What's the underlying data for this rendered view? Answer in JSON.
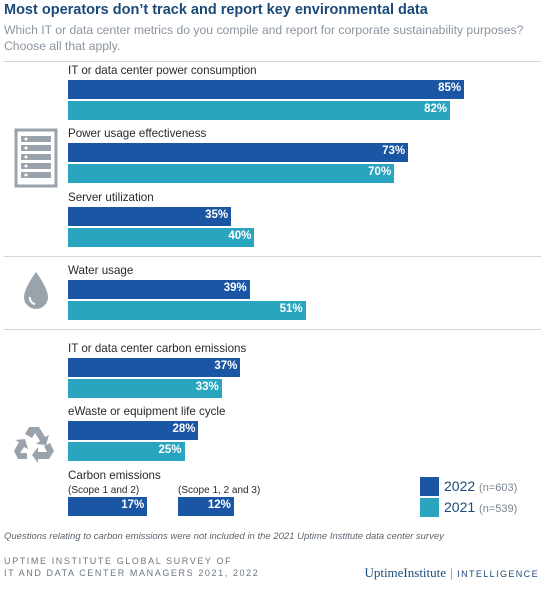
{
  "title": "Most operators don’t track and report key environmental data",
  "subtitle": "Which IT or data center metrics do you compile and report for corporate sustainability purposes? Choose all that apply.",
  "colors": {
    "2022": "#1a56a3",
    "2021": "#2aa5bf"
  },
  "chart_data": {
    "type": "bar",
    "orientation": "horizontal",
    "unit": "%",
    "xlim": [
      0,
      100
    ],
    "series": [
      {
        "name": "2022",
        "n": "(n=603)"
      },
      {
        "name": "2021",
        "n": "(n=539)"
      }
    ],
    "groups": [
      {
        "icon": "server-rack-icon",
        "categories": [
          {
            "label": "IT or data center power consumption",
            "2022": 85,
            "2021": 82
          },
          {
            "label": "Power usage effectiveness",
            "2022": 73,
            "2021": 70
          },
          {
            "label": "Server utilization",
            "2022": 35,
            "2021": 40
          }
        ]
      },
      {
        "icon": "water-drop-icon",
        "categories": [
          {
            "label": "Water usage",
            "2022": 39,
            "2021": 51
          }
        ]
      },
      {
        "icon": "recycle-icon",
        "categories": [
          {
            "label": "IT or data center carbon emissions",
            "2022": 37,
            "2021": 33
          },
          {
            "label": "eWaste or equipment life cycle",
            "2022": 28,
            "2021": 25
          }
        ]
      }
    ],
    "carbon": {
      "label": "Carbon emissions",
      "items": [
        {
          "sublabel": "(Scope 1 and 2)",
          "2022": 17
        },
        {
          "sublabel": "(Scope 1, 2 and 3)",
          "2022": 12
        }
      ]
    }
  },
  "footnote": "Questions relating to carbon emissions were not included in the 2021 Uptime Institute data center survey",
  "source_line1": "UPTIME INSTITUTE GLOBAL SURVEY OF",
  "source_line2": "IT AND DATA CENTER MANAGERS 2021, 2022",
  "brand": {
    "name": "UptimeInstitute",
    "sep": "|",
    "suffix": "INTELLIGENCE"
  }
}
